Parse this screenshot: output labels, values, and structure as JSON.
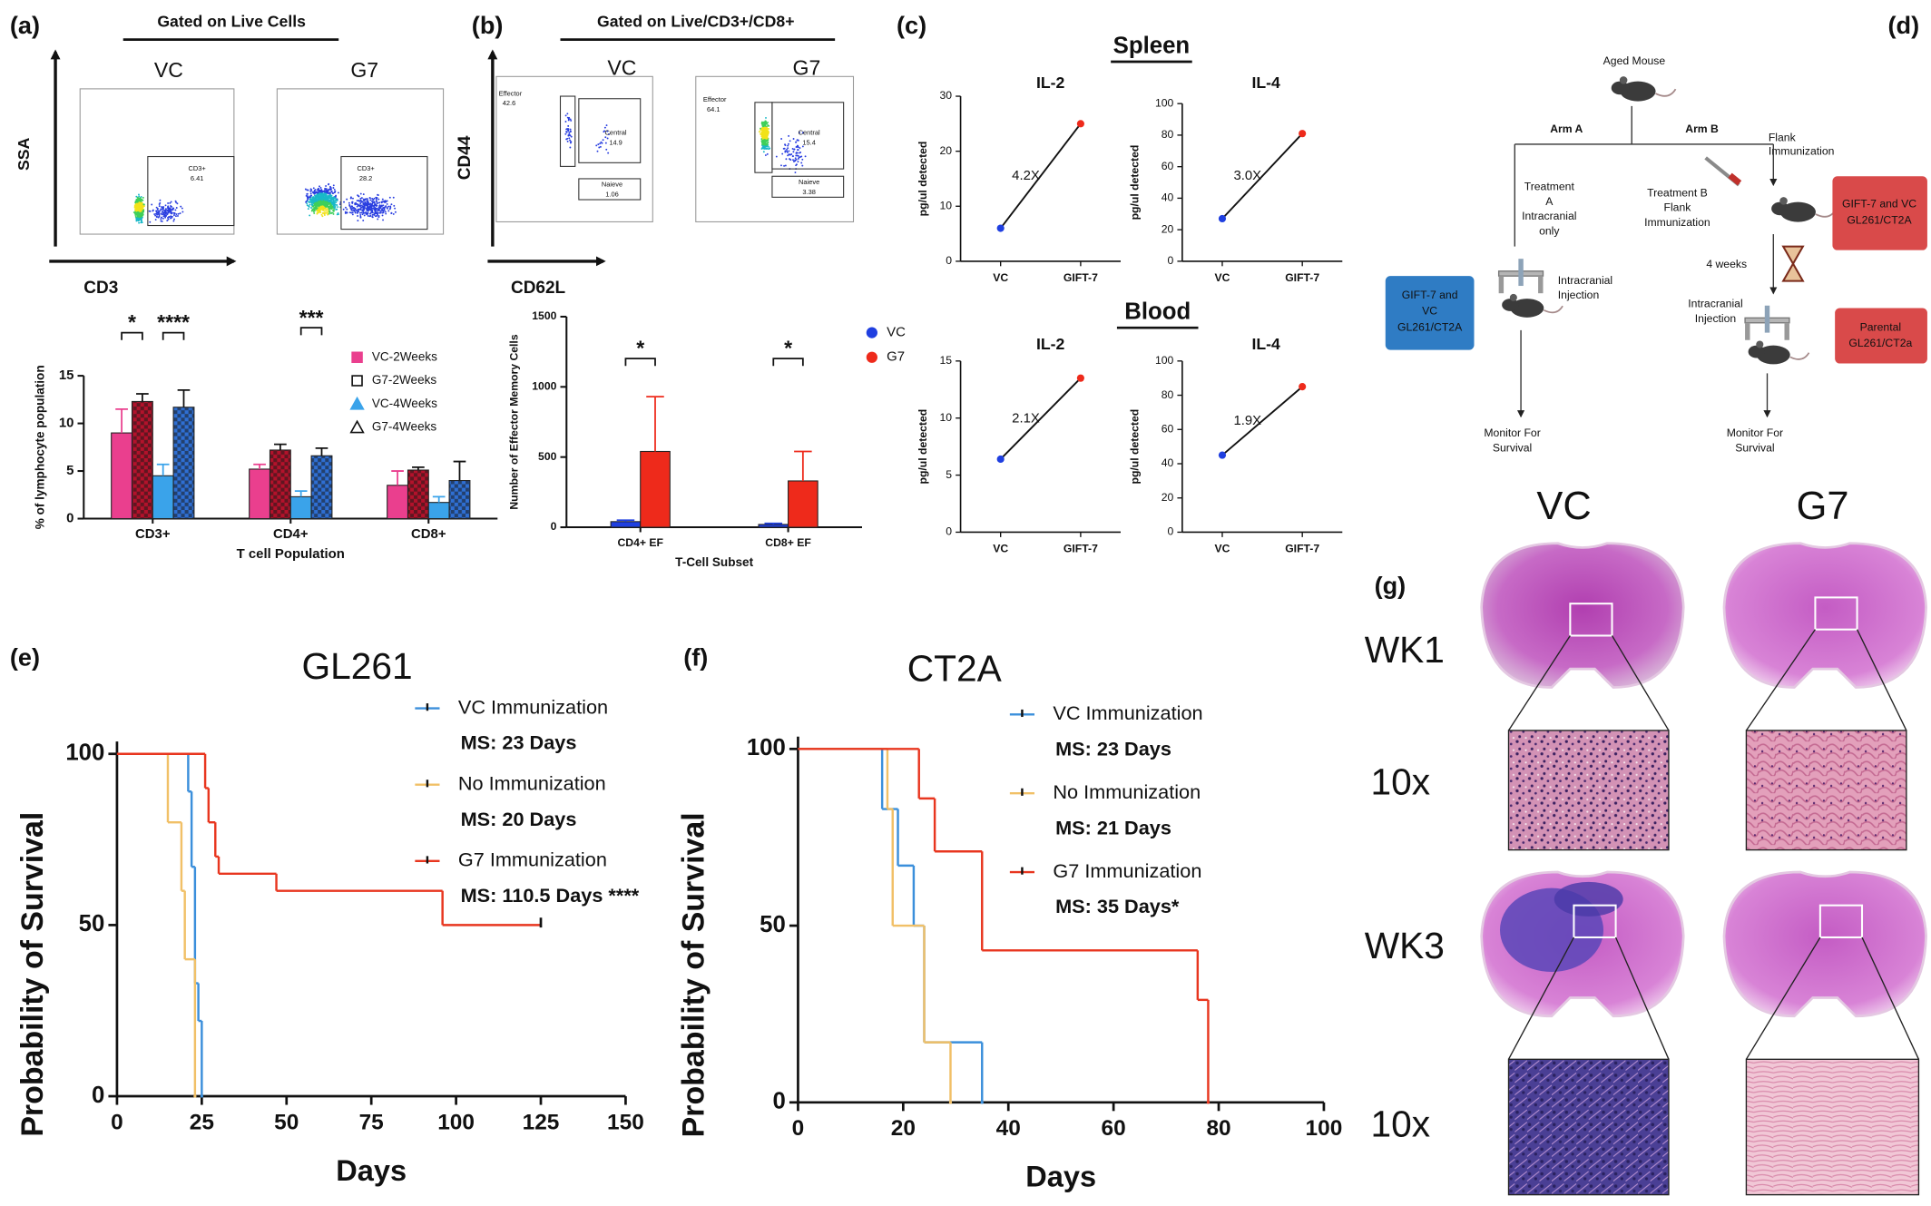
{
  "panel_labels": [
    "(a)",
    "(b)",
    "(c)",
    "(d)",
    "(e)",
    "(f)",
    "(g)"
  ],
  "flow_a": {
    "title": "Gated on Live Cells",
    "samples": [
      "VC",
      "G7"
    ],
    "y_axis": "SSA",
    "x_axis": "CD3",
    "gates": [
      [
        "CD3+",
        "6.41"
      ],
      [
        "CD3+",
        "28.2"
      ]
    ]
  },
  "flow_b": {
    "title": "Gated on Live/CD3+/CD8+",
    "samples": [
      "VC",
      "G7"
    ],
    "y_axis": "CD44",
    "x_axis": "CD62L",
    "gates": [
      [
        [
          "Effector",
          "42.6"
        ],
        [
          "Central",
          "14.9"
        ],
        [
          "Naieve",
          "1.06"
        ]
      ],
      [
        [
          "Effector",
          "64.1"
        ],
        [
          "Central",
          "15.4"
        ],
        [
          "Naieve",
          "3.38"
        ]
      ]
    ]
  },
  "cytokine_groups": [
    "Spleen",
    "Blood"
  ],
  "diagram": {
    "top": "Aged Mouse",
    "arm_a": "Arm A",
    "arm_b": "Arm B",
    "flank": [
      "Flank",
      "Immunization"
    ],
    "treatment_a": [
      "Treatment",
      "A",
      "Intracranial",
      "only"
    ],
    "treatment_b": [
      "Treatment B",
      "Flank",
      "Immunization"
    ],
    "injection_a": [
      "Intracranial",
      "Injection"
    ],
    "wait": "4 weeks",
    "injection_b": [
      "Intracranial",
      "Injection"
    ],
    "monitor_a": [
      "Monitor For",
      "Survival"
    ],
    "monitor_b": [
      "Monitor For",
      "Survival"
    ],
    "box_a": [
      "GIFT-7 and",
      "VC",
      "GL261/CT2A"
    ],
    "box_b": [
      "GIFT-7 and VC",
      "GL261/CT2A"
    ],
    "box_c": [
      "Parental",
      "GL261/CT2a"
    ]
  },
  "histology": {
    "columns": [
      "VC",
      "G7"
    ],
    "rows": [
      "WK1",
      "10x",
      "WK3",
      "10x"
    ]
  },
  "chart_data": [
    {
      "type": "bar",
      "ylabel": "% of lymphocyte population",
      "xlabel": "T cell Population",
      "categories": [
        "CD3+",
        "CD4+",
        "CD8+"
      ],
      "series": [
        {
          "name": "VC-2Weeks",
          "color": "#ea3f8e",
          "marker": "square",
          "values": [
            9,
            5.2,
            3.5
          ],
          "errors": [
            2.5,
            0.5,
            1.5
          ]
        },
        {
          "name": "G7-2Weeks",
          "color": "#b3122b",
          "marker": "square-open",
          "hatch": true,
          "values": [
            12.3,
            7.2,
            5.1
          ],
          "errors": [
            0.8,
            0.6,
            0.3
          ]
        },
        {
          "name": "VC-4Weeks",
          "color": "#3aa3ea",
          "marker": "triangle",
          "values": [
            4.5,
            2.3,
            1.7
          ],
          "errors": [
            1.2,
            0.6,
            0.6
          ]
        },
        {
          "name": "G7-4Weeks",
          "color": "#2f6fd3",
          "marker": "triangle-open",
          "hatch": true,
          "values": [
            11.7,
            6.6,
            4
          ],
          "errors": [
            1.8,
            0.8,
            2
          ]
        }
      ],
      "annotations": [
        "*",
        "****",
        "***"
      ],
      "ylim": [
        0,
        15
      ],
      "yticks": [
        0,
        5,
        10,
        15
      ],
      "legend": "upper right"
    },
    {
      "type": "bar",
      "ylabel": "Number of Effector Memory Cells",
      "xlabel": "T-Cell Subset",
      "categories": [
        "CD4+ EF",
        "CD8+ EF"
      ],
      "series": [
        {
          "name": "VC",
          "color": "#1f3fe0",
          "marker": "circle",
          "values": [
            40,
            20
          ],
          "errors": [
            10,
            8
          ]
        },
        {
          "name": "G7",
          "color": "#ee2a1b",
          "marker": "circle",
          "values": [
            540,
            330
          ],
          "errors": [
            390,
            210
          ]
        }
      ],
      "annotations": [
        "*",
        "*"
      ],
      "ylim": [
        0,
        1500
      ],
      "yticks": [
        0,
        500,
        1000,
        1500
      ],
      "legend": "right"
    },
    {
      "type": "line",
      "title": "IL-2",
      "ylabel": "pg/ul detected",
      "categories": [
        "VC",
        "GIFT-7"
      ],
      "values": [
        6,
        25
      ],
      "point_colors": [
        "#1f3fe0",
        "#ee2a1b"
      ],
      "annotation": "4.2X",
      "ylim": [
        0,
        30
      ],
      "yticks": [
        0,
        10,
        20,
        30
      ]
    },
    {
      "type": "line",
      "title": "IL-4",
      "ylabel": "pg/ul detected",
      "categories": [
        "VC",
        "GIFT-7"
      ],
      "values": [
        27,
        81
      ],
      "point_colors": [
        "#1f3fe0",
        "#ee2a1b"
      ],
      "annotation": "3.0X",
      "ylim": [
        0,
        100
      ],
      "yticks": [
        0,
        20,
        40,
        60,
        80,
        100
      ]
    },
    {
      "type": "line",
      "title": "IL-2",
      "ylabel": "pg/ul detected",
      "categories": [
        "VC",
        "GIFT-7"
      ],
      "values": [
        6.4,
        13.5
      ],
      "point_colors": [
        "#1f3fe0",
        "#ee2a1b"
      ],
      "annotation": "2.1X",
      "ylim": [
        0,
        15
      ],
      "yticks": [
        0,
        5,
        10,
        15
      ]
    },
    {
      "type": "line",
      "title": "IL-4",
      "ylabel": "pg/ul detected",
      "categories": [
        "VC",
        "GIFT-7"
      ],
      "values": [
        45,
        85
      ],
      "point_colors": [
        "#1f3fe0",
        "#ee2a1b"
      ],
      "annotation": "1.9X",
      "ylim": [
        0,
        100
      ],
      "yticks": [
        0,
        20,
        40,
        60,
        80,
        100
      ]
    },
    {
      "type": "step",
      "title": "GL261",
      "xlabel": "Days",
      "ylabel": "Probability of Survival",
      "series": [
        {
          "name": "VC Immunization",
          "color": "#3b8fdb",
          "annotation": "MS: 23 Days",
          "x": [
            0,
            21,
            22,
            23,
            24,
            25
          ],
          "values": [
            100,
            89,
            67,
            33,
            22,
            0
          ]
        },
        {
          "name": "No Immunization",
          "color": "#f1c067",
          "annotation": "MS: 20 Days",
          "x": [
            0,
            15,
            19,
            20,
            23
          ],
          "values": [
            100,
            80,
            60,
            40,
            0
          ]
        },
        {
          "name": "G7 Immunization",
          "color": "#e8361f",
          "annotation": "MS: 110.5 Days ****",
          "x": [
            0,
            26,
            27,
            29,
            30,
            47,
            96,
            125
          ],
          "values": [
            100,
            90,
            80,
            70,
            65,
            60,
            50,
            50
          ]
        }
      ],
      "xlim": [
        0,
        150
      ],
      "xticks": [
        0,
        25,
        50,
        75,
        100,
        125,
        150
      ],
      "ylim": [
        0,
        100
      ],
      "yticks": [
        0,
        50,
        100
      ]
    },
    {
      "type": "step",
      "title": "CT2A",
      "xlabel": "Days",
      "ylabel": "Probability of Survival",
      "series": [
        {
          "name": "VC Immunization",
          "color": "#3b8fdb",
          "annotation": "MS: 23 Days",
          "x": [
            0,
            16,
            19,
            22,
            24,
            35
          ],
          "values": [
            100,
            83,
            67,
            50,
            17,
            0
          ]
        },
        {
          "name": "No Immunization",
          "color": "#f1c067",
          "annotation": "MS: 21 Days",
          "x": [
            0,
            17,
            18,
            24,
            29
          ],
          "values": [
            100,
            83,
            50,
            17,
            0
          ]
        },
        {
          "name": "G7 Immunization",
          "color": "#e8361f",
          "annotation": "MS: 35 Days*",
          "x": [
            0,
            23,
            26,
            35,
            76,
            78
          ],
          "values": [
            100,
            86,
            71,
            43,
            29,
            0
          ]
        }
      ],
      "xlim": [
        0,
        100
      ],
      "xticks": [
        0,
        20,
        40,
        60,
        80,
        100
      ],
      "ylim": [
        0,
        100
      ],
      "yticks": [
        0,
        50,
        100
      ]
    }
  ]
}
